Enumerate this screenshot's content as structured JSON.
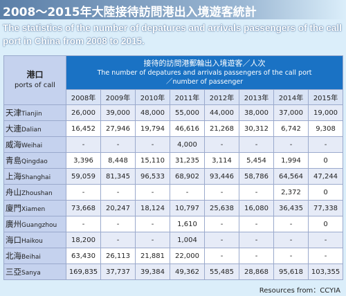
{
  "header": {
    "title": "2008～2015年大陸接待訪問港出入境遊客統計",
    "subtitle": "The statistics of the number of depatures and arrivals passengers of the call port in China from 2008 to 2015."
  },
  "table": {
    "corner_cn": "港口",
    "corner_en": "ports of call",
    "group_header": [
      "接待的訪問港郵輪出入境遊客／人次",
      "The number of depatures and arrivals passengers of the call port",
      "／number of passenger"
    ],
    "years": [
      "2008年",
      "2009年",
      "2010年",
      "2011年",
      "2012年",
      "2013年",
      "2014年",
      "2015年"
    ],
    "rows": [
      {
        "cn": "天津",
        "en": "Tianjin",
        "values": [
          "26,000",
          "39,000",
          "48,000",
          "55,000",
          "44,000",
          "38,000",
          "37,000",
          "19,000"
        ]
      },
      {
        "cn": "大連",
        "en": "Dalian",
        "values": [
          "16,452",
          "27,946",
          "19,794",
          "46,616",
          "21,268",
          "30,312",
          "6,742",
          "9,308"
        ]
      },
      {
        "cn": "威海",
        "en": "Weihai",
        "values": [
          "-",
          "-",
          "-",
          "4,000",
          "-",
          "-",
          "-",
          "-"
        ]
      },
      {
        "cn": "青島",
        "en": "Qingdao",
        "values": [
          "3,396",
          "8,448",
          "15,110",
          "31,235",
          "3,114",
          "5,454",
          "1,994",
          "0"
        ]
      },
      {
        "cn": "上海",
        "en": "Shanghai",
        "values": [
          "59,059",
          "81,345",
          "96,533",
          "68,902",
          "93,446",
          "58,786",
          "64,564",
          "47,244"
        ]
      },
      {
        "cn": "舟山",
        "en": "Zhoushan",
        "values": [
          "-",
          "-",
          "-",
          "-",
          "-",
          "-",
          "2,372",
          "0"
        ]
      },
      {
        "cn": "廈門",
        "en": "Xiamen",
        "values": [
          "73,668",
          "20,247",
          "18,124",
          "10,797",
          "25,638",
          "16,080",
          "36,435",
          "77,338"
        ]
      },
      {
        "cn": "廣州",
        "en": "Guangzhou",
        "values": [
          "-",
          "-",
          "-",
          "1,610",
          "-",
          "-",
          "-",
          "0"
        ]
      },
      {
        "cn": "海口",
        "en": "Haikou",
        "values": [
          "18,200",
          "-",
          "-",
          "1,004",
          "-",
          "-",
          "-",
          "-"
        ]
      },
      {
        "cn": "北海",
        "en": "Beihai",
        "values": [
          "63,430",
          "26,113",
          "21,881",
          "22,000",
          "-",
          "-",
          "-",
          "-"
        ]
      },
      {
        "cn": "三亞",
        "en": "Sanya",
        "values": [
          "169,835",
          "37,737",
          "39,384",
          "49,362",
          "55,485",
          "28,868",
          "95,618",
          "103,355"
        ]
      }
    ]
  },
  "footer": "Resources from：CCYIA"
}
